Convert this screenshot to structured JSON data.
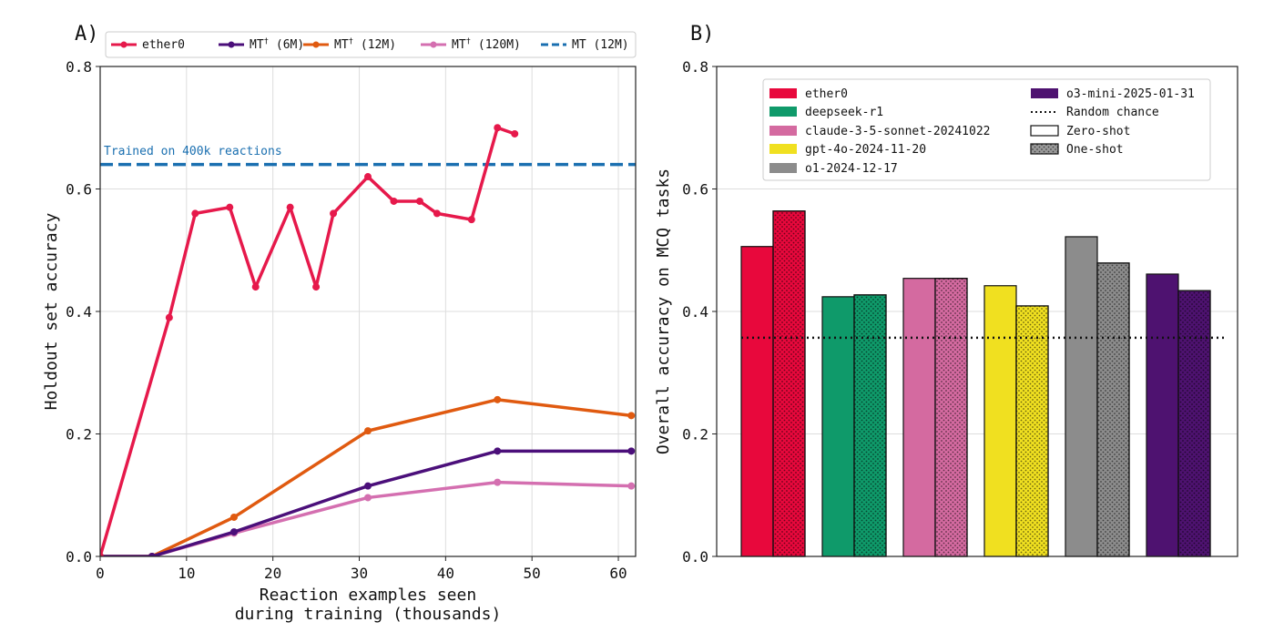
{
  "chart_data": [
    {
      "panel_label": "A)",
      "type": "line",
      "xlabel": [
        "Reaction examples seen",
        "during training (thousands)"
      ],
      "ylabel": "Holdout set accuracy",
      "xlim": [
        0,
        62
      ],
      "ylim": [
        0,
        0.8
      ],
      "xticks": [
        0,
        10,
        20,
        30,
        40,
        50,
        60
      ],
      "yticks": [
        0.0,
        0.2,
        0.4,
        0.6,
        0.8
      ],
      "xtick_labels": [
        "0",
        "10",
        "20",
        "30",
        "40",
        "50",
        "60"
      ],
      "ytick_labels": [
        "0.0",
        "0.2",
        "0.4",
        "0.6",
        "0.8"
      ],
      "grid": true,
      "legend_position": "top",
      "series": [
        {
          "name": "ether0",
          "legend_label": "ether0",
          "color": "#e6194b",
          "x": [
            0,
            8,
            11,
            15,
            18,
            22,
            25,
            27,
            31,
            34,
            37,
            39,
            43,
            46,
            48
          ],
          "y": [
            0.0,
            0.39,
            0.56,
            0.57,
            0.44,
            0.57,
            0.44,
            0.56,
            0.62,
            0.58,
            0.58,
            0.56,
            0.55,
            0.7,
            0.69
          ]
        },
        {
          "name": "MT† (6M)",
          "legend_label": "MT",
          "legend_sup": "†",
          "legend_suffix": " (6M)",
          "color": "#4b0f7a",
          "x": [
            0,
            6,
            15.5,
            31,
            46,
            61.5
          ],
          "y": [
            0.0,
            0.0,
            0.04,
            0.115,
            0.172,
            0.172
          ]
        },
        {
          "name": "MT† (12M)",
          "legend_label": "MT",
          "legend_sup": "†",
          "legend_suffix": " (12M)",
          "color": "#e05a10",
          "x": [
            0,
            6,
            15.5,
            31,
            46,
            61.5
          ],
          "y": [
            0.0,
            0.0,
            0.064,
            0.205,
            0.256,
            0.23
          ]
        },
        {
          "name": "MT† (120M)",
          "legend_label": "MT",
          "legend_sup": "†",
          "legend_suffix": " (120M)",
          "color": "#d46fb0",
          "x": [
            0,
            6,
            15.5,
            31,
            46,
            61.5
          ],
          "y": [
            0.0,
            0.0,
            0.038,
            0.096,
            0.121,
            0.115
          ]
        }
      ],
      "reference_line": {
        "name": "MT (12M)",
        "legend_label": "MT (12M)",
        "y": 0.64,
        "color": "#1a6fb0",
        "annotation": "Trained on 400k reactions"
      }
    },
    {
      "panel_label": "B)",
      "type": "bar",
      "ylabel": "Overall accuracy on MCQ tasks",
      "ylim": [
        0,
        0.8
      ],
      "yticks": [
        0.0,
        0.2,
        0.4,
        0.6,
        0.8
      ],
      "ytick_labels": [
        "0.0",
        "0.2",
        "0.4",
        "0.6",
        "0.8"
      ],
      "grid": true,
      "legend_position": "top",
      "groups": [
        {
          "name": "ether0",
          "color": "#e8083c",
          "zero_shot": 0.506,
          "one_shot": 0.564
        },
        {
          "name": "deepseek-r1",
          "color": "#0f9a6a",
          "zero_shot": 0.424,
          "one_shot": 0.427
        },
        {
          "name": "claude-3-5-sonnet-20241022",
          "color": "#d46aa0",
          "zero_shot": 0.454,
          "one_shot": 0.454
        },
        {
          "name": "gpt-4o-2024-11-20",
          "color": "#f0e020",
          "zero_shot": 0.442,
          "one_shot": 0.409
        },
        {
          "name": "o1-2024-12-17",
          "color": "#8c8c8c",
          "zero_shot": 0.522,
          "one_shot": 0.479
        },
        {
          "name": "o3-mini-2025-01-31",
          "color": "#4e1270",
          "zero_shot": 0.461,
          "one_shot": 0.434
        }
      ],
      "random_chance": {
        "label": "Random chance",
        "value": 0.357
      },
      "style_legend": {
        "zero_shot": "Zero-shot",
        "one_shot": "One-shot"
      }
    }
  ]
}
